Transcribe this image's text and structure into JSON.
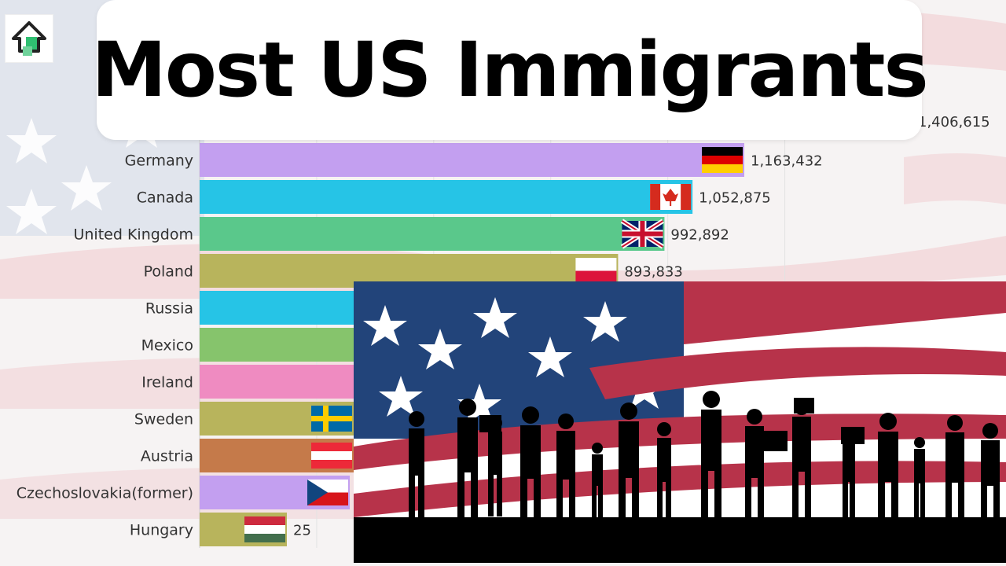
{
  "title": "Most US Immigrants",
  "logo": {
    "icon": "house-arrow-logo-icon"
  },
  "chart_data": {
    "type": "bar",
    "orientation": "horizontal",
    "title": "Most US Immigrants",
    "categories": [
      "Germany",
      "Canada",
      "United Kingdom",
      "Poland",
      "Russia",
      "Mexico",
      "Ireland",
      "Sweden",
      "Austria",
      "Czechoslovakia(former)",
      "Hungary"
    ],
    "values": [
      1163432,
      1052875,
      992892,
      893833,
      null,
      null,
      null,
      null,
      null,
      null,
      null
    ],
    "value_labels": [
      "1,163,432",
      "1,052,875",
      "992,892",
      "893,833",
      "",
      "",
      "",
      "",
      "",
      "",
      "25"
    ],
    "partial_top_label": "1,406,615",
    "bar_colors": [
      "#c39ff0",
      "#26c4e6",
      "#5ac88b",
      "#b8b45c",
      "#26c4e6",
      "#86c46c",
      "#ef8bc1",
      "#b8b45c",
      "#c57a4a",
      "#c39ff0",
      "#b8b45c"
    ],
    "flags": [
      "germany-flag-icon",
      "canada-flag-icon",
      "uk-flag-icon",
      "poland-flag-icon",
      "",
      "",
      "",
      "sweden-flag-icon",
      "austria-flag-icon",
      "czech-flag-icon",
      "hungary-flag-icon"
    ],
    "grid": true,
    "legend": "none"
  },
  "overlay_photo": {
    "icon": "immigrants-silhouette-flag-image"
  }
}
